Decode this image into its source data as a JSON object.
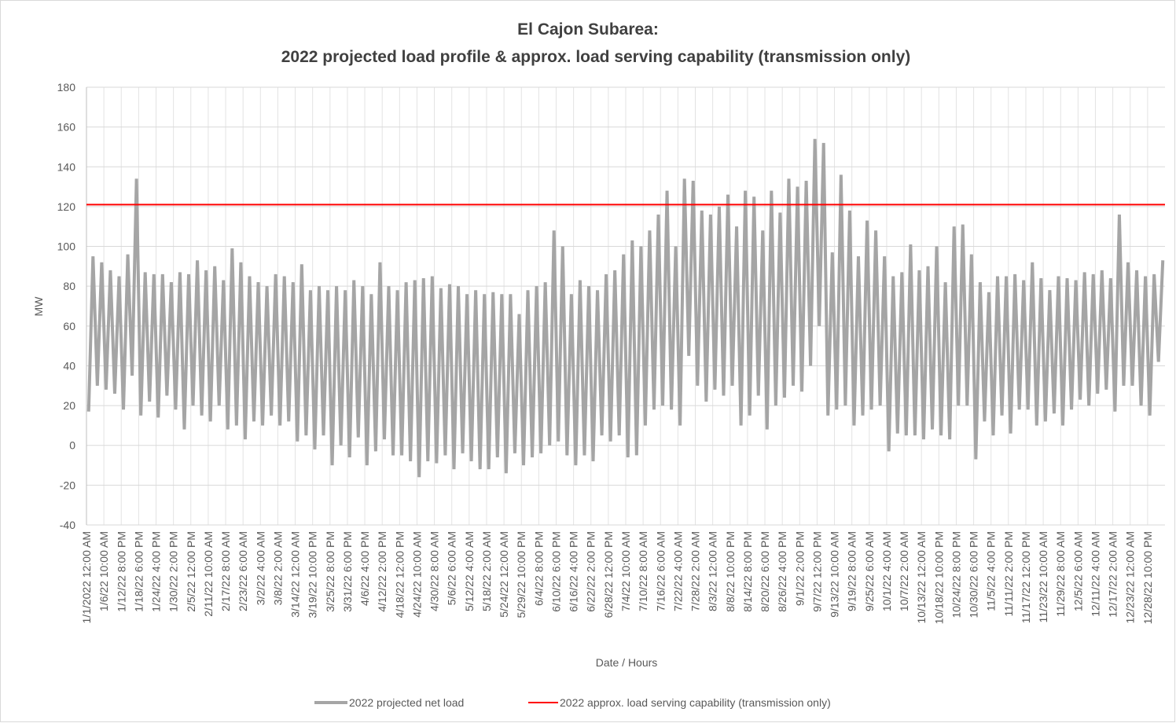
{
  "chart_data": {
    "type": "line",
    "title": "El Cajon Subarea:",
    "subtitle": "2022 projected load profile & approx. load serving capability (transmission only)",
    "y_label": "MW",
    "x_label": "Date / Hours",
    "ylim": [
      -40,
      180
    ],
    "yticks": [
      -40,
      -20,
      0,
      20,
      40,
      60,
      80,
      100,
      120,
      140,
      160,
      180
    ],
    "grid": true,
    "legend": "bottom",
    "categories": [
      "1/1/2022 12:00 AM",
      null,
      null,
      null,
      "1/6/22 10:00 AM",
      null,
      null,
      null,
      "1/12/22 8:00 PM",
      null,
      null,
      null,
      "1/18/22 6:00 PM",
      null,
      null,
      null,
      "1/24/22 4:00 PM",
      null,
      null,
      null,
      "1/30/22 2:00 PM",
      null,
      null,
      null,
      "2/5/22 12:00 PM",
      null,
      null,
      null,
      "2/11/22 10:00 AM",
      null,
      null,
      null,
      "2/17/22 8:00 AM",
      null,
      null,
      null,
      "2/23/22 6:00 AM",
      null,
      null,
      null,
      "3/2/22 4:00 AM",
      null,
      null,
      null,
      "3/8/22 2:00 AM",
      null,
      null,
      null,
      "3/14/22 12:00 AM",
      null,
      null,
      null,
      "3/19/22 10:00 PM",
      null,
      null,
      null,
      "3/25/22 8:00 PM",
      null,
      null,
      null,
      "3/31/22 6:00 PM",
      null,
      null,
      null,
      "4/6/22 4:00 PM",
      null,
      null,
      null,
      "4/12/22 2:00 PM",
      null,
      null,
      null,
      "4/18/22 12:00 PM",
      null,
      null,
      null,
      "4/24/22 10:00 AM",
      null,
      null,
      null,
      "4/30/22 8:00 AM",
      null,
      null,
      null,
      "5/6/22 6:00 AM",
      null,
      null,
      null,
      "5/12/22 4:00 AM",
      null,
      null,
      null,
      "5/18/22 2:00 AM",
      null,
      null,
      null,
      "5/24/22 12:00 AM",
      null,
      null,
      null,
      "5/29/22 10:00 PM",
      null,
      null,
      null,
      "6/4/22 8:00 PM",
      null,
      null,
      null,
      "6/10/22 6:00 PM",
      null,
      null,
      null,
      "6/16/22 4:00 PM",
      null,
      null,
      null,
      "6/22/22 2:00 PM",
      null,
      null,
      null,
      "6/28/22 12:00 PM",
      null,
      null,
      null,
      "7/4/22 10:00 AM",
      null,
      null,
      null,
      "7/10/22 8:00 AM",
      null,
      null,
      null,
      "7/16/22 6:00 AM",
      null,
      null,
      null,
      "7/22/22 4:00 AM",
      null,
      null,
      null,
      "7/28/22 2:00 AM",
      null,
      null,
      null,
      "8/3/22 12:00 AM",
      null,
      null,
      null,
      "8/8/22 10:00 PM",
      null,
      null,
      null,
      "8/14/22 8:00 PM",
      null,
      null,
      null,
      "8/20/22 6:00 PM",
      null,
      null,
      null,
      "8/26/22 4:00 PM",
      null,
      null,
      null,
      "9/1/22 2:00 PM",
      null,
      null,
      null,
      "9/7/22 12:00 PM",
      null,
      null,
      null,
      "9/13/22 10:00 AM",
      null,
      null,
      null,
      "9/19/22 8:00 AM",
      null,
      null,
      null,
      "9/25/22 6:00 AM",
      null,
      null,
      null,
      "10/1/22 4:00 AM",
      null,
      null,
      null,
      "10/7/22 2:00 AM",
      null,
      null,
      null,
      "10/13/22 12:00 AM",
      null,
      null,
      null,
      "10/18/22 10:00 PM",
      null,
      null,
      null,
      "10/24/22 8:00 PM",
      null,
      null,
      null,
      "10/30/22 6:00 PM",
      null,
      null,
      null,
      "11/5/22 4:00 PM",
      null,
      null,
      null,
      "11/11/22 2:00 PM",
      null,
      null,
      null,
      "11/17/22 12:00 PM",
      null,
      null,
      null,
      "11/23/22 10:00 AM",
      null,
      null,
      null,
      "11/29/22 8:00 AM",
      null,
      null,
      null,
      "12/5/22 6:00 AM",
      null,
      null,
      null,
      "12/11/22 4:00 AM",
      null,
      null,
      null,
      "12/17/22 2:00 AM",
      null,
      null,
      null,
      "12/23/22 12:00 AM",
      null,
      null,
      null,
      "12/28/22 10:00 PM",
      null,
      null,
      null
    ],
    "series": [
      {
        "name": "2022 projected net load",
        "color": "#a5a5a5",
        "values": [
          17,
          95,
          30,
          92,
          28,
          88,
          26,
          85,
          18,
          96,
          35,
          134,
          15,
          87,
          22,
          86,
          14,
          86,
          25,
          82,
          18,
          87,
          8,
          86,
          20,
          93,
          15,
          88,
          12,
          90,
          20,
          83,
          8,
          99,
          10,
          92,
          3,
          85,
          12,
          82,
          10,
          80,
          15,
          86,
          10,
          85,
          12,
          82,
          2,
          91,
          5,
          78,
          -2,
          80,
          5,
          78,
          -10,
          80,
          0,
          78,
          -6,
          83,
          4,
          80,
          -10,
          76,
          -3,
          92,
          3,
          80,
          -5,
          78,
          -5,
          82,
          -8,
          83,
          -16,
          84,
          -8,
          85,
          -9,
          79,
          -5,
          81,
          -12,
          80,
          -4,
          76,
          -8,
          78,
          -12,
          76,
          -12,
          77,
          -6,
          76,
          -14,
          76,
          -4,
          66,
          -10,
          78,
          -6,
          80,
          -4,
          82,
          0,
          108,
          2,
          100,
          -5,
          76,
          -10,
          83,
          -5,
          80,
          -8,
          78,
          5,
          86,
          2,
          88,
          5,
          96,
          -6,
          103,
          -5,
          100,
          10,
          108,
          18,
          116,
          20,
          128,
          18,
          100,
          10,
          134,
          45,
          133,
          30,
          118,
          22,
          116,
          28,
          120,
          25,
          126,
          30,
          110,
          10,
          128,
          15,
          125,
          25,
          108,
          8,
          128,
          20,
          117,
          24,
          134,
          30,
          130,
          27,
          133,
          40,
          154,
          60,
          152,
          15,
          97,
          18,
          136,
          20,
          118,
          10,
          95,
          15,
          113,
          18,
          108,
          20,
          95,
          -3,
          85,
          6,
          87,
          5,
          101,
          5,
          88,
          3,
          90,
          8,
          100,
          5,
          82,
          3,
          110,
          20,
          111,
          20,
          96,
          -7,
          82,
          12,
          77,
          5,
          85,
          15,
          85,
          6,
          86,
          18,
          83,
          18,
          92,
          10,
          84,
          12,
          78,
          16,
          85,
          10,
          84,
          18,
          83,
          23,
          87,
          20,
          86,
          26,
          88,
          28,
          84,
          17,
          116,
          30,
          92,
          30,
          88,
          20,
          85,
          15,
          86,
          42,
          93
        ]
      }
    ],
    "reference_line": {
      "name": "2022 approx. load serving  capability (transmission only)",
      "color": "#ff0000",
      "value": 121
    }
  }
}
